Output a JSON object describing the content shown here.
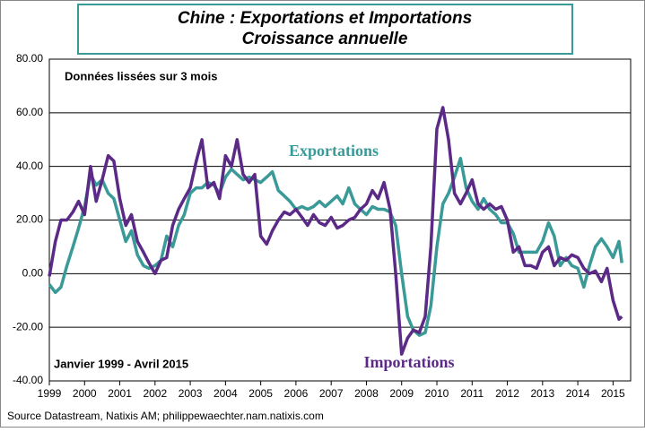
{
  "chart_data": {
    "type": "line",
    "title": "Chine : Exportations et Importations",
    "subtitle": "Croissance annuelle",
    "annotations": [
      "Données lissées  sur 3 mois",
      "Janvier 1999 - Avril 2015"
    ],
    "source": "Source Datastream, Natixis AM; philippewaechter.nam.natixis.com",
    "x": [
      1999,
      1999.17,
      1999.33,
      1999.5,
      1999.67,
      1999.83,
      2000,
      2000.17,
      2000.33,
      2000.5,
      2000.67,
      2000.83,
      2001,
      2001.17,
      2001.33,
      2001.5,
      2001.67,
      2001.83,
      2002,
      2002.17,
      2002.33,
      2002.5,
      2002.67,
      2002.83,
      2003,
      2003.17,
      2003.33,
      2003.5,
      2003.67,
      2003.83,
      2004,
      2004.17,
      2004.33,
      2004.5,
      2004.67,
      2004.83,
      2005,
      2005.17,
      2005.33,
      2005.5,
      2005.67,
      2005.83,
      2006,
      2006.17,
      2006.33,
      2006.5,
      2006.67,
      2006.83,
      2007,
      2007.17,
      2007.33,
      2007.5,
      2007.67,
      2007.83,
      2008,
      2008.17,
      2008.33,
      2008.5,
      2008.67,
      2008.83,
      2009,
      2009.17,
      2009.33,
      2009.5,
      2009.67,
      2009.83,
      2010,
      2010.17,
      2010.33,
      2010.5,
      2010.67,
      2010.83,
      2011,
      2011.17,
      2011.33,
      2011.5,
      2011.67,
      2011.83,
      2012,
      2012.17,
      2012.33,
      2012.5,
      2012.67,
      2012.83,
      2013,
      2013.17,
      2013.33,
      2013.5,
      2013.67,
      2013.83,
      2014,
      2014.17,
      2014.33,
      2014.5,
      2014.67,
      2014.83,
      2015,
      2015.17,
      2015.25
    ],
    "series": [
      {
        "name": "Exportations",
        "color": "#3a9a98",
        "values": [
          -4,
          -7,
          -5,
          3,
          10,
          17,
          25,
          37,
          33,
          35,
          30,
          28,
          20,
          12,
          16,
          7,
          3,
          2,
          3,
          5,
          14,
          10,
          18,
          22,
          30,
          32,
          32,
          34,
          33,
          30,
          36,
          39,
          37,
          35,
          36,
          35,
          34,
          36,
          38,
          31,
          29,
          27,
          24,
          25,
          24,
          25,
          27,
          25,
          27,
          29,
          26,
          32,
          26,
          24,
          22,
          25,
          24,
          24,
          23,
          18,
          0,
          -16,
          -21,
          -23,
          -22,
          -12,
          10,
          26,
          30,
          36,
          43,
          32,
          27,
          24,
          28,
          24,
          22,
          19,
          19,
          15,
          8,
          8,
          8,
          8,
          12,
          19,
          14,
          3,
          6,
          3,
          2,
          -5,
          3,
          10,
          13,
          10,
          6,
          12,
          4
        ]
      },
      {
        "name": "Importations",
        "color": "#5b2a86",
        "values": [
          -1,
          12,
          20,
          20,
          23,
          27,
          22,
          40,
          27,
          35,
          44,
          42,
          28,
          18,
          22,
          12,
          8,
          4,
          0,
          5,
          6,
          18,
          24,
          28,
          32,
          42,
          50,
          32,
          34,
          28,
          44,
          40,
          50,
          37,
          34,
          37,
          14,
          11,
          16,
          20,
          23,
          22,
          24,
          21,
          18,
          22,
          19,
          18,
          21,
          17,
          18,
          20,
          21,
          24,
          26,
          31,
          28,
          34,
          24,
          0,
          -30,
          -24,
          -21,
          -22,
          -16,
          10,
          54,
          62,
          50,
          30,
          26,
          30,
          35,
          26,
          24,
          26,
          24,
          25,
          20,
          8,
          10,
          3,
          3,
          2,
          8,
          10,
          3,
          6,
          5,
          7,
          6,
          2,
          0,
          1,
          -3,
          2,
          -10,
          -17,
          -16
        ]
      }
    ],
    "xlim": [
      1999,
      2015.5
    ],
    "xticks": [
      1999,
      2000,
      2001,
      2002,
      2003,
      2004,
      2005,
      2006,
      2007,
      2008,
      2009,
      2010,
      2011,
      2012,
      2013,
      2014,
      2015
    ],
    "ylim": [
      -40,
      80
    ],
    "yticks": [
      {
        "value": -40,
        "label": "-40.00"
      },
      {
        "value": -20,
        "label": "-20.00"
      },
      {
        "value": 0,
        "label": "0.00"
      },
      {
        "value": 20,
        "label": "20.00"
      },
      {
        "value": 40,
        "label": "40.00"
      },
      {
        "value": 60,
        "label": "60.00"
      },
      {
        "value": 80,
        "label": "80.00"
      }
    ],
    "grid": true
  }
}
